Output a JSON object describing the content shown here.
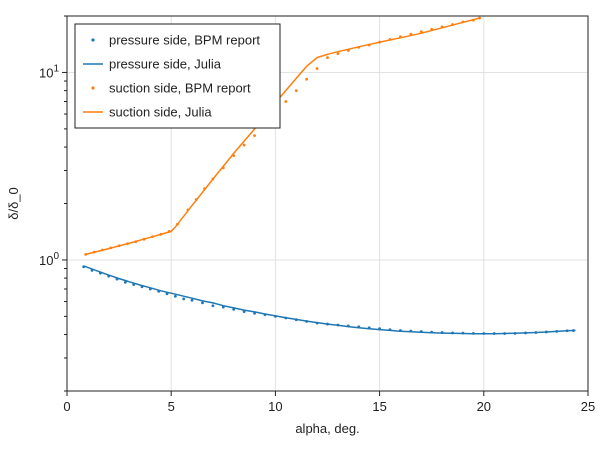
{
  "chart_data": {
    "type": "line",
    "xlabel": "alpha, deg.",
    "ylabel": "δ/δ_0",
    "yscale": "log",
    "xlim": [
      0,
      25
    ],
    "ylim": [
      0.2,
      20
    ],
    "xticks": [
      {
        "value": 0,
        "label": "0"
      },
      {
        "value": 5,
        "label": "5"
      },
      {
        "value": 10,
        "label": "10"
      },
      {
        "value": 15,
        "label": "15"
      },
      {
        "value": 20,
        "label": "20"
      },
      {
        "value": 25,
        "label": "25"
      }
    ],
    "yticks": [
      {
        "value": 1,
        "base": "10",
        "exp": "0"
      },
      {
        "value": 10,
        "base": "10",
        "exp": "1"
      }
    ],
    "grid": true,
    "legend": "top-left",
    "series": [
      {
        "name": "pressure side, BPM report",
        "style": "markers",
        "color": "#1f77b4",
        "x": [
          0.8,
          1.2,
          1.6,
          2.0,
          2.4,
          2.8,
          3.2,
          3.6,
          4.0,
          4.4,
          4.8,
          5.2,
          5.6,
          6.0,
          6.5,
          7.0,
          7.5,
          8.0,
          8.5,
          9.0,
          9.5,
          10.0,
          10.5,
          11.0,
          11.5,
          12.0,
          12.5,
          13.0,
          13.5,
          14.0,
          14.5,
          15.0,
          15.5,
          16.0,
          16.5,
          17.0,
          17.5,
          18.0,
          18.5,
          19.0,
          19.5,
          20.0,
          20.5,
          21.0,
          21.5,
          22.0,
          22.5,
          23.0,
          23.5,
          24.0,
          24.3
        ],
        "y": [
          0.92,
          0.88,
          0.85,
          0.82,
          0.79,
          0.76,
          0.74,
          0.72,
          0.7,
          0.68,
          0.66,
          0.64,
          0.62,
          0.61,
          0.59,
          0.57,
          0.56,
          0.545,
          0.53,
          0.52,
          0.51,
          0.5,
          0.49,
          0.48,
          0.47,
          0.46,
          0.455,
          0.45,
          0.445,
          0.44,
          0.435,
          0.43,
          0.425,
          0.42,
          0.418,
          0.415,
          0.412,
          0.41,
          0.408,
          0.407,
          0.406,
          0.405,
          0.405,
          0.405,
          0.406,
          0.408,
          0.41,
          0.413,
          0.416,
          0.419,
          0.42
        ]
      },
      {
        "name": "pressure side, Julia",
        "style": "line",
        "color": "#1f77b4",
        "x": [
          0.8,
          1.5,
          2.0,
          2.5,
          3.0,
          3.5,
          4.0,
          4.5,
          5.0,
          5.5,
          6.0,
          6.5,
          7.0,
          7.5,
          8.0,
          8.5,
          9.0,
          9.5,
          10.0,
          10.5,
          11.0,
          11.5,
          12.0,
          12.5,
          13.0,
          13.5,
          14.0,
          14.5,
          15.0,
          15.5,
          16.0,
          16.5,
          17.0,
          17.5,
          18.0,
          18.5,
          19.0,
          19.5,
          20.0,
          20.5,
          21.0,
          21.5,
          22.0,
          22.5,
          23.0,
          23.5,
          24.0,
          24.4
        ],
        "y": [
          0.93,
          0.87,
          0.83,
          0.795,
          0.765,
          0.735,
          0.71,
          0.685,
          0.665,
          0.645,
          0.625,
          0.605,
          0.59,
          0.57,
          0.555,
          0.54,
          0.528,
          0.515,
          0.503,
          0.492,
          0.482,
          0.472,
          0.463,
          0.455,
          0.448,
          0.441,
          0.435,
          0.43,
          0.425,
          0.421,
          0.417,
          0.414,
          0.411,
          0.409,
          0.407,
          0.406,
          0.405,
          0.404,
          0.404,
          0.404,
          0.405,
          0.406,
          0.408,
          0.41,
          0.413,
          0.416,
          0.419,
          0.421
        ]
      },
      {
        "name": "suction side, BPM report",
        "style": "markers",
        "color": "#ff7f0e",
        "x": [
          0.9,
          1.3,
          1.7,
          2.1,
          2.5,
          2.9,
          3.3,
          3.7,
          4.1,
          4.5,
          4.9,
          5.3,
          5.8,
          6.2,
          6.6,
          7.0,
          7.5,
          8.0,
          8.5,
          9.0,
          9.5,
          10.0,
          10.5,
          11.0,
          11.5,
          12.0,
          12.5,
          13.0,
          13.5,
          14.0,
          14.5,
          15.0,
          15.5,
          16.0,
          16.5,
          17.0,
          17.5,
          18.0,
          18.5,
          19.0,
          19.5,
          19.8
        ],
        "y": [
          1.07,
          1.1,
          1.13,
          1.16,
          1.19,
          1.22,
          1.25,
          1.29,
          1.33,
          1.37,
          1.42,
          1.55,
          1.85,
          2.1,
          2.4,
          2.7,
          3.1,
          3.6,
          4.1,
          4.6,
          5.3,
          6.1,
          7.0,
          8.0,
          9.2,
          10.5,
          12.0,
          12.6,
          13.1,
          13.6,
          14.0,
          14.5,
          15.0,
          15.5,
          16.0,
          16.5,
          17.0,
          17.5,
          18.0,
          18.6,
          19.0,
          19.5
        ]
      },
      {
        "name": "suction side, Julia",
        "style": "line",
        "color": "#ff7f0e",
        "x": [
          0.9,
          2.0,
          3.0,
          4.0,
          5.0,
          5.2,
          6.0,
          7.0,
          8.0,
          9.0,
          10.0,
          11.0,
          11.5,
          12.0,
          12.5,
          13.0,
          14.0,
          15.0,
          16.0,
          17.0,
          18.0,
          19.0,
          19.8
        ],
        "y": [
          1.07,
          1.15,
          1.23,
          1.32,
          1.42,
          1.5,
          1.95,
          2.7,
          3.7,
          5.0,
          6.9,
          9.3,
          10.8,
          12.0,
          12.5,
          12.9,
          13.7,
          14.5,
          15.3,
          16.2,
          17.3,
          18.5,
          19.5
        ]
      }
    ]
  }
}
